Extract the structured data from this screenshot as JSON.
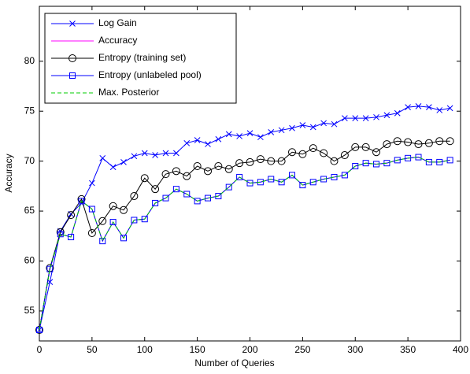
{
  "chart_data": {
    "type": "line",
    "x": [
      0,
      10,
      20,
      30,
      40,
      50,
      60,
      70,
      80,
      90,
      100,
      110,
      120,
      130,
      140,
      150,
      160,
      170,
      180,
      190,
      200,
      210,
      220,
      230,
      240,
      250,
      260,
      270,
      280,
      290,
      300,
      310,
      320,
      330,
      340,
      350,
      360,
      370,
      380,
      390
    ],
    "series": [
      {
        "name": "Log Gain",
        "color": "#0000ff",
        "marker": "x",
        "dash": false,
        "values": [
          53.1,
          57.9,
          63.0,
          64.7,
          65.8,
          67.8,
          70.3,
          69.4,
          69.9,
          70.5,
          70.8,
          70.6,
          70.8,
          70.8,
          71.8,
          72.1,
          71.7,
          72.2,
          72.7,
          72.5,
          72.8,
          72.4,
          72.9,
          73.1,
          73.3,
          73.6,
          73.4,
          73.8,
          73.7,
          74.3,
          74.3,
          74.3,
          74.4,
          74.6,
          74.8,
          75.4,
          75.5,
          75.4,
          75.1,
          75.3
        ]
      },
      {
        "name": "Accuracy",
        "color": "#ff00ff",
        "marker": "none",
        "dash": false,
        "values": [
          53.1,
          59.2,
          62.7,
          62.4,
          66.0,
          65.2,
          62.0,
          63.9,
          62.3,
          64.1,
          64.2,
          65.8,
          66.3,
          67.2,
          66.7,
          66.0,
          66.3,
          66.5,
          67.4,
          68.4,
          67.8,
          67.9,
          68.2,
          67.9,
          68.6,
          67.6,
          67.9,
          68.2,
          68.4,
          68.6,
          69.5,
          69.8,
          69.7,
          69.8,
          70.1,
          70.3,
          70.4,
          69.9,
          69.9,
          70.1
        ]
      },
      {
        "name": "Entropy (training set)",
        "color": "#000000",
        "marker": "o",
        "dash": false,
        "values": [
          53.1,
          59.3,
          62.9,
          64.6,
          66.2,
          62.8,
          64.0,
          65.5,
          65.1,
          66.5,
          68.3,
          67.2,
          68.7,
          69.0,
          68.5,
          69.5,
          69.0,
          69.5,
          69.2,
          69.8,
          69.9,
          70.2,
          70.0,
          70.0,
          70.9,
          70.7,
          71.3,
          70.8,
          70.0,
          70.6,
          71.4,
          71.4,
          70.9,
          71.7,
          72.0,
          71.9,
          71.7,
          71.8,
          72.0,
          72.0
        ]
      },
      {
        "name": "Entropy (unlabeled pool)",
        "color": "#0000ff",
        "marker": "s",
        "dash": false,
        "values": [
          53.1,
          59.2,
          62.7,
          62.4,
          66.0,
          65.2,
          62.0,
          63.9,
          62.3,
          64.1,
          64.2,
          65.8,
          66.3,
          67.2,
          66.7,
          66.0,
          66.3,
          66.5,
          67.4,
          68.4,
          67.8,
          67.9,
          68.2,
          67.9,
          68.6,
          67.6,
          67.9,
          68.2,
          68.4,
          68.6,
          69.5,
          69.8,
          69.7,
          69.8,
          70.1,
          70.3,
          70.4,
          69.9,
          69.9,
          70.1
        ]
      },
      {
        "name": "Max. Posterior",
        "color": "#00cc00",
        "marker": "none",
        "dash": true,
        "values": [
          53.1,
          59.2,
          62.7,
          62.4,
          66.0,
          65.2,
          62.0,
          63.9,
          62.3,
          64.1,
          64.2,
          65.8,
          66.3,
          67.2,
          66.7,
          66.0,
          66.3,
          66.5,
          67.4,
          68.4,
          67.8,
          67.9,
          68.2,
          67.9,
          68.6,
          67.6,
          67.9,
          68.2,
          68.4,
          68.6,
          69.5,
          69.8,
          69.7,
          69.8,
          70.1,
          70.3,
          70.4,
          69.9,
          69.9,
          70.1
        ]
      }
    ],
    "xlabel": "Number of Queries",
    "ylabel": "Accuracy",
    "xlim": [
      0,
      400
    ],
    "ylim": [
      52,
      85.5
    ],
    "xticks": [
      0,
      50,
      100,
      150,
      200,
      250,
      300,
      350,
      400
    ],
    "yticks": [
      55,
      60,
      65,
      70,
      75,
      80
    ],
    "grid": false,
    "legend": "upper left"
  }
}
